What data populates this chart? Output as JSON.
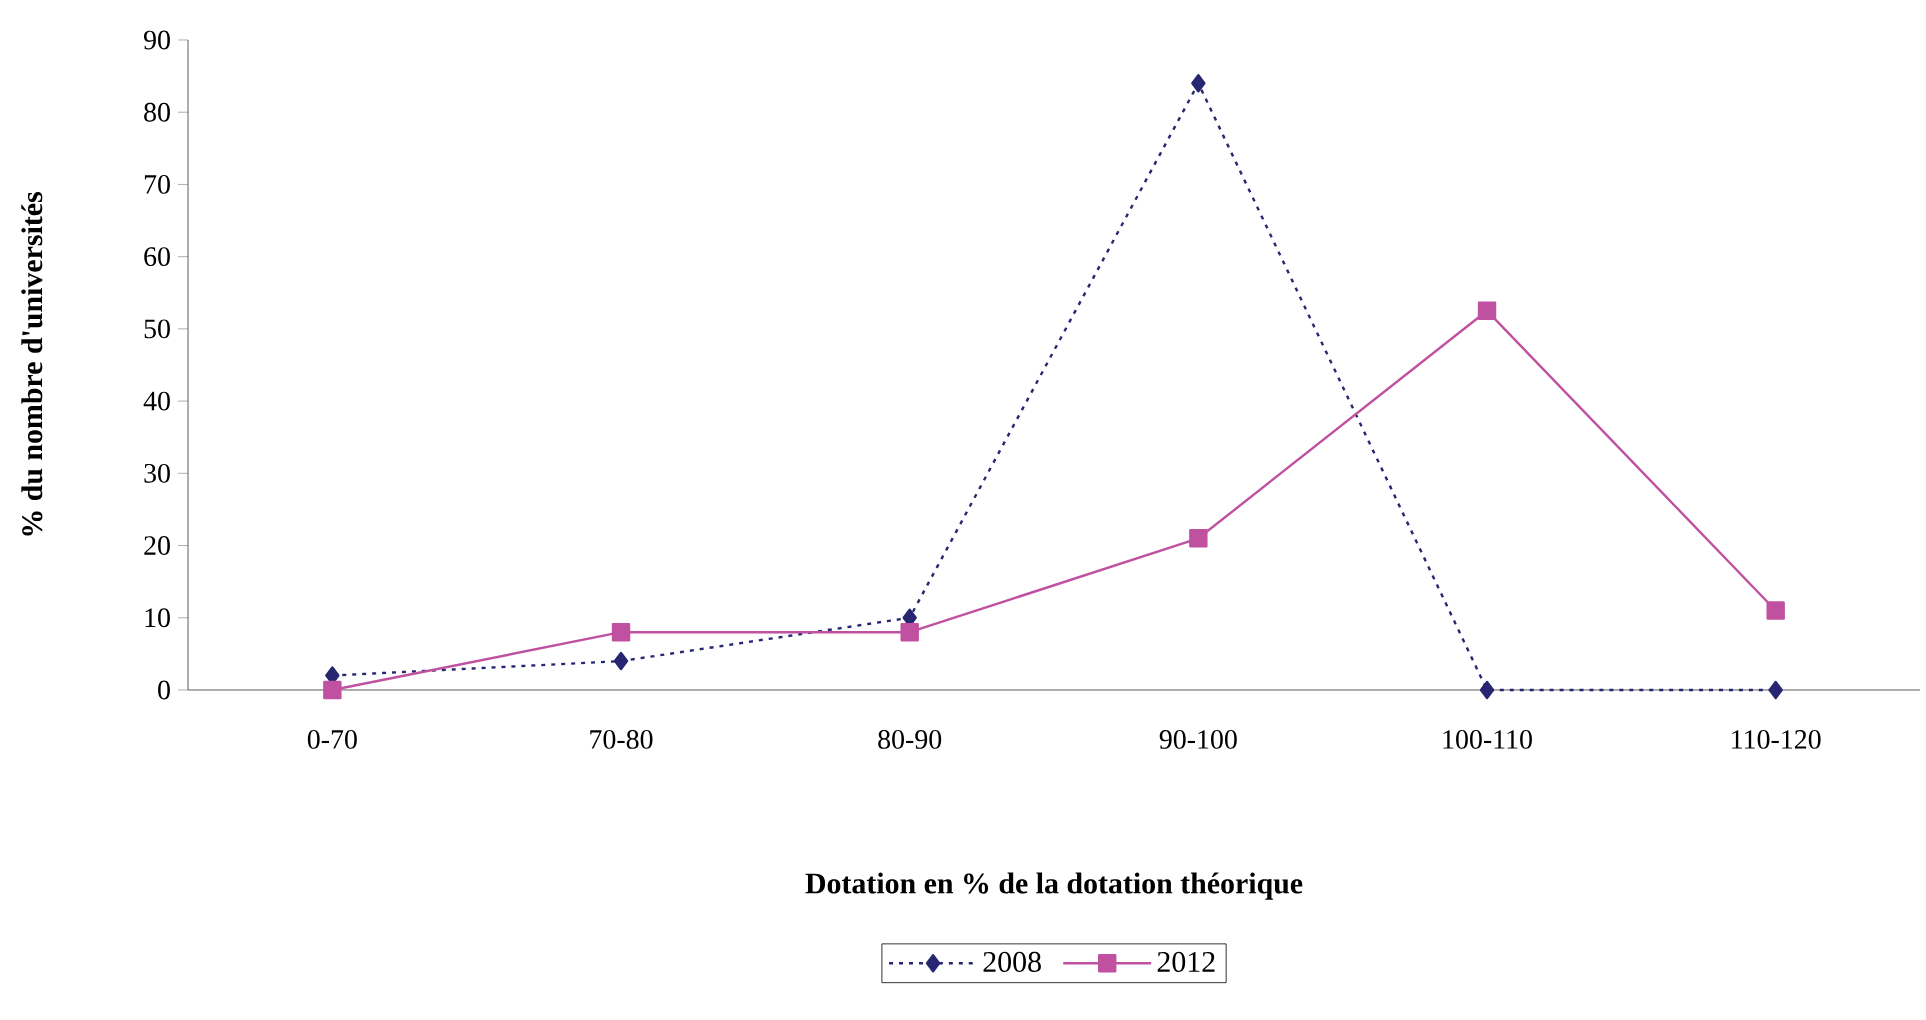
{
  "chart_data": {
    "type": "line",
    "xlabel": "Dotation en % de la dotation théorique",
    "ylabel": "% du nombre d'universités",
    "categories": [
      "0-70",
      "70-80",
      "80-90",
      "90-100",
      "100-110",
      "110-120"
    ],
    "series": [
      {
        "name": "2008",
        "color": "#262673",
        "values": [
          2,
          4,
          10,
          84,
          0,
          0
        ],
        "marker": "diamond",
        "line_style": "dotted"
      },
      {
        "name": "2012",
        "color": "#c050a0",
        "values": [
          0,
          8,
          8,
          21,
          52.5,
          11
        ],
        "marker": "square",
        "line_style": "solid"
      }
    ],
    "ylim": [
      0,
      90
    ],
    "yticks": [
      0,
      10,
      20,
      30,
      40,
      50,
      60,
      70,
      80,
      90
    ],
    "grid": false,
    "legend": "bottom"
  }
}
